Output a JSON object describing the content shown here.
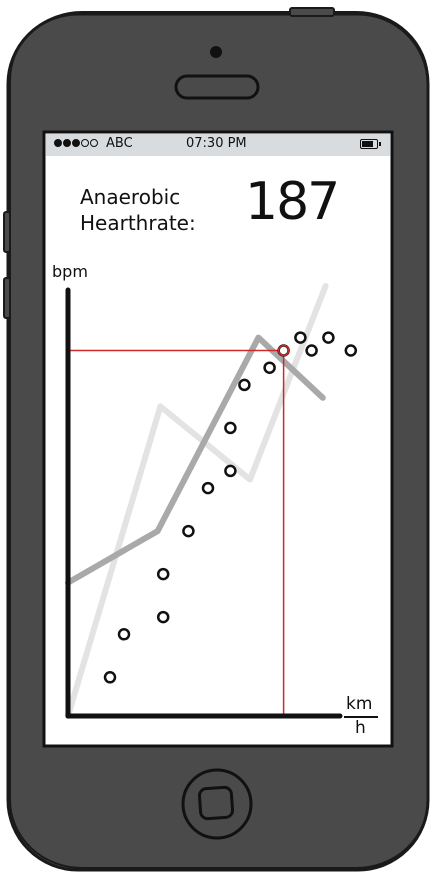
{
  "status_bar": {
    "carrier": "ABC",
    "time": "07:30 PM",
    "signal_bars_filled": 3,
    "signal_bars_total": 5,
    "battery_level": 0.85
  },
  "metric": {
    "label_line1": "Anaerobic",
    "label_line2": "Hearthrate:",
    "value": "187"
  },
  "chart_data": {
    "type": "scatter",
    "xlabel_numerator": "km",
    "xlabel_denominator": "h",
    "ylabel": "bpm",
    "xlim": [
      0,
      100
    ],
    "ylim": [
      0,
      100
    ],
    "grid": false,
    "points": [
      {
        "x": 15,
        "y": 9
      },
      {
        "x": 20,
        "y": 19
      },
      {
        "x": 34,
        "y": 23
      },
      {
        "x": 34,
        "y": 33
      },
      {
        "x": 43,
        "y": 43
      },
      {
        "x": 50,
        "y": 53
      },
      {
        "x": 58,
        "y": 57
      },
      {
        "x": 58,
        "y": 67
      },
      {
        "x": 63,
        "y": 77
      },
      {
        "x": 72,
        "y": 81
      },
      {
        "x": 77,
        "y": 85
      },
      {
        "x": 83,
        "y": 88
      },
      {
        "x": 87,
        "y": 85
      },
      {
        "x": 93,
        "y": 88
      },
      {
        "x": 101,
        "y": 85
      }
    ],
    "series": [
      {
        "type": "line",
        "color": "#a9a9a9",
        "points": [
          {
            "x": 0,
            "y": 31
          },
          {
            "x": 32,
            "y": 43
          },
          {
            "x": 68,
            "y": 88
          },
          {
            "x": 91,
            "y": 74
          }
        ]
      },
      {
        "type": "line",
        "color": "#e3e3e3",
        "points": [
          {
            "x": 0,
            "y": 0
          },
          {
            "x": 33,
            "y": 72
          },
          {
            "x": 65,
            "y": 55
          },
          {
            "x": 92,
            "y": 100
          }
        ]
      }
    ],
    "reference": {
      "x": 77,
      "y": 85,
      "color": "#cc2a2a"
    }
  },
  "colors": {
    "device_body": "#4a4a4a",
    "device_outline": "#1a1a1a",
    "screen_bg": "#ffffff",
    "status_bar_bg": "#d8dcdf",
    "axis": "#111111",
    "reference_line": "#cc2a2a"
  },
  "icons": {
    "speaker": "speaker-grille-icon",
    "camera": "front-camera-icon",
    "home": "home-button-icon",
    "battery": "battery-icon"
  }
}
